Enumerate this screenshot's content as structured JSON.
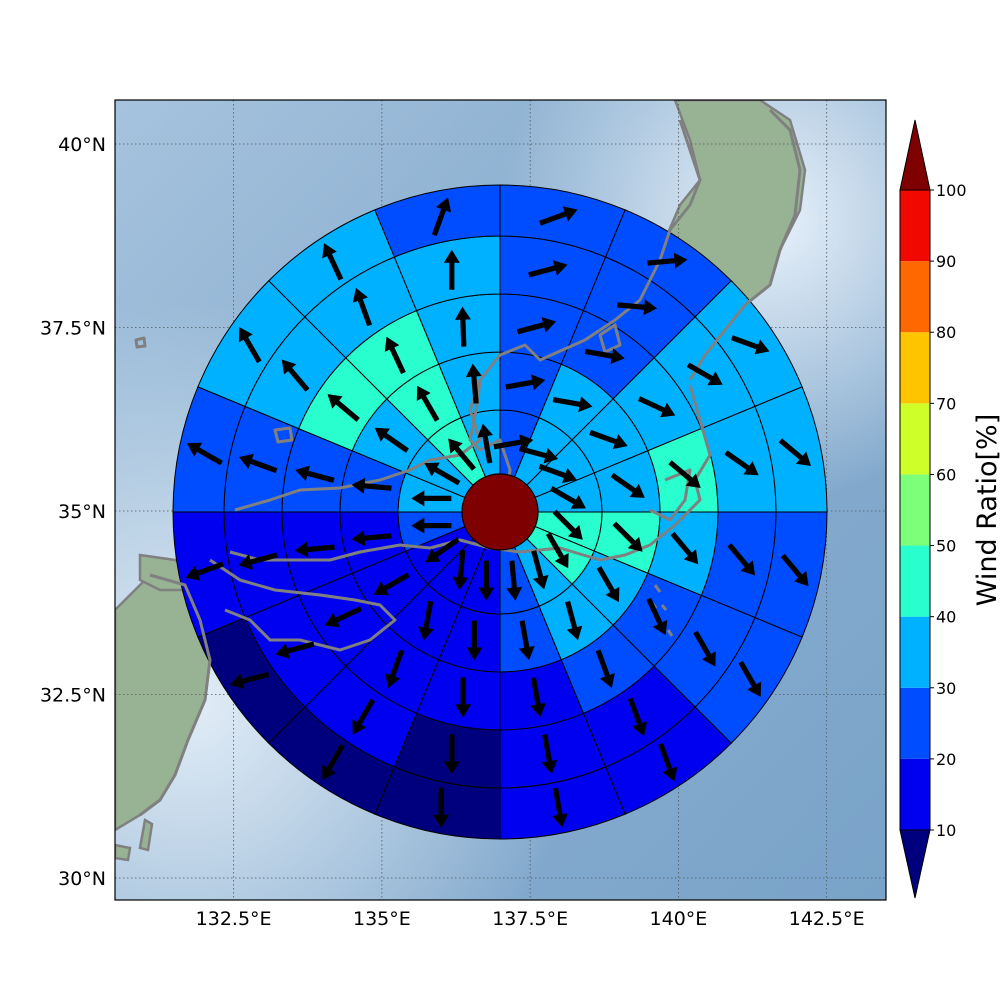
{
  "map": {
    "lon_ticks": [
      "132.5°E",
      "135°E",
      "137.5°E",
      "140°E",
      "142.5°E"
    ],
    "lat_ticks": [
      "40°N",
      "37.5°N",
      "35°N",
      "32.5°N",
      "30°N"
    ],
    "lon_values": [
      132.5,
      135,
      137.5,
      140,
      142.5
    ],
    "lat_values": [
      40,
      37.5,
      35,
      32.5,
      30
    ],
    "extent": {
      "lon_min": 130.5,
      "lon_max": 143.5,
      "lat_min": 29.7,
      "lat_max": 40.6
    },
    "center": {
      "lon": 136.95,
      "lat": 35.15
    },
    "sea_color": "#8fb3d3",
    "land_color": "#8fb090",
    "coast_color": "#808080"
  },
  "colorbar": {
    "title": "Wind Ratio[%]",
    "labels": [
      "10",
      "20",
      "30",
      "40",
      "50",
      "60",
      "70",
      "80",
      "90",
      "100"
    ],
    "colors": [
      "#00007f",
      "#0000f1",
      "#004dff",
      "#00b1ff",
      "#29ffce",
      "#7dff7a",
      "#ceff29",
      "#ffc400",
      "#ff6800",
      "#f10800",
      "#7f0000"
    ],
    "extend": "both"
  },
  "chart_data": {
    "type": "polar-sector",
    "sectors": 16,
    "center_value_class": 10,
    "rings": [
      [
        2,
        3,
        3,
        3,
        4,
        4,
        3,
        2,
        1,
        1,
        1,
        2,
        3,
        3,
        4,
        3
      ],
      [
        2,
        3,
        3,
        3,
        4,
        3,
        3,
        2,
        1,
        1,
        1,
        1,
        2,
        3,
        4,
        3
      ],
      [
        2,
        2,
        3,
        4,
        3,
        2,
        2,
        1,
        1,
        1,
        1,
        1,
        2,
        4,
        4,
        3
      ],
      [
        2,
        2,
        3,
        3,
        2,
        2,
        1,
        1,
        0,
        1,
        1,
        1,
        2,
        3,
        3,
        3
      ],
      [
        2,
        2,
        3,
        3,
        2,
        2,
        1,
        1,
        0,
        0,
        0,
        1,
        2,
        3,
        3,
        2
      ]
    ],
    "arrow_dirs_deg": [
      [
        80,
        105,
        110,
        120,
        135,
        150,
        165,
        175,
        180,
        185,
        235,
        270,
        270,
        300,
        320,
        350
      ],
      [
        80,
        100,
        110,
        125,
        135,
        150,
        165,
        170,
        180,
        190,
        240,
        265,
        275,
        305,
        330,
        355
      ],
      [
        75,
        100,
        115,
        130,
        140,
        155,
        160,
        170,
        180,
        200,
        245,
        265,
        285,
        310,
        335,
        358
      ],
      [
        75,
        95,
        120,
        125,
        140,
        150,
        160,
        170,
        180,
        210,
        255,
        255,
        290,
        320,
        340,
        360
      ],
      [
        70,
        85,
        110,
        130,
        140,
        150,
        160,
        170,
        180,
        210,
        255,
        250,
        300,
        330,
        335,
        20
      ]
    ]
  }
}
